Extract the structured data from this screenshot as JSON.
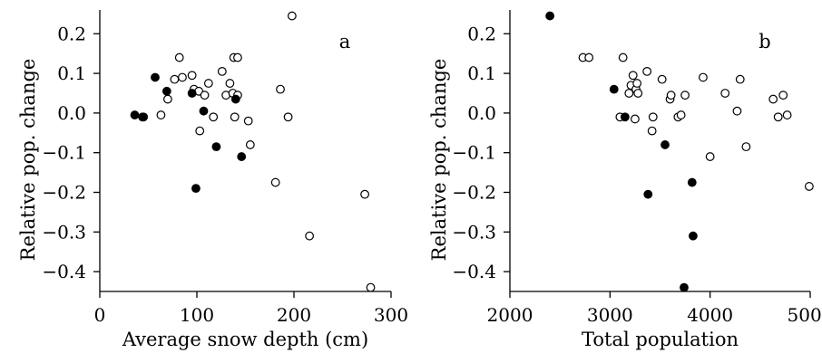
{
  "chart_data": [
    {
      "type": "scatter",
      "panel_label": "a",
      "xlabel": "Average snow depth (cm)",
      "ylabel": "Relative pop. change",
      "xlim": [
        0,
        300
      ],
      "ylim": [
        -0.45,
        0.26
      ],
      "x_ticks": [
        0,
        100,
        200,
        300
      ],
      "y_ticks": [
        -0.4,
        -0.3,
        -0.2,
        -0.1,
        0.0,
        0.1,
        0.2
      ],
      "y_tick_labels": [
        "−0.4",
        "−0.3",
        "−0.2",
        "−0.1",
        "0.0",
        "0.1",
        "0.2"
      ],
      "grid": false,
      "series": [
        {
          "marker": "open",
          "points": [
            [
              45,
              -0.01
            ],
            [
              63,
              -0.005
            ],
            [
              70,
              0.035
            ],
            [
              77,
              0.085
            ],
            [
              82,
              0.14
            ],
            [
              85,
              0.09
            ],
            [
              95,
              0.095
            ],
            [
              97,
              0.06
            ],
            [
              102,
              0.055
            ],
            [
              103,
              -0.045
            ],
            [
              108,
              0.045
            ],
            [
              112,
              0.075
            ],
            [
              117,
              -0.01
            ],
            [
              126,
              0.105
            ],
            [
              130,
              0.045
            ],
            [
              134,
              0.075
            ],
            [
              137,
              0.05
            ],
            [
              138,
              0.14
            ],
            [
              142,
              0.14
            ],
            [
              142,
              0.045
            ],
            [
              139,
              -0.01
            ],
            [
              153,
              -0.02
            ],
            [
              155,
              -0.08
            ],
            [
              181,
              -0.175
            ],
            [
              186,
              0.06
            ],
            [
              194,
              -0.01
            ],
            [
              198,
              0.245
            ],
            [
              216,
              -0.31
            ],
            [
              273,
              -0.205
            ],
            [
              279,
              -0.44
            ]
          ]
        },
        {
          "marker": "filled",
          "points": [
            [
              36,
              -0.005
            ],
            [
              44,
              -0.01
            ],
            [
              57,
              0.09
            ],
            [
              69,
              0.055
            ],
            [
              95,
              0.05
            ],
            [
              99,
              -0.19
            ],
            [
              107,
              0.005
            ],
            [
              120,
              -0.085
            ],
            [
              140,
              0.035
            ],
            [
              146,
              -0.11
            ]
          ]
        }
      ]
    },
    {
      "type": "scatter",
      "panel_label": "b",
      "xlabel": "Total population",
      "ylabel": "Relative pop. change",
      "xlim": [
        2000,
        5000
      ],
      "ylim": [
        -0.45,
        0.26
      ],
      "x_ticks": [
        2000,
        3000,
        4000,
        5000
      ],
      "y_ticks": [
        -0.4,
        -0.3,
        -0.2,
        -0.1,
        0.0,
        0.1,
        0.2
      ],
      "y_tick_labels": [
        "−0.4",
        "−0.3",
        "−0.2",
        "−0.1",
        "0.0",
        "0.1",
        "0.2"
      ],
      "grid": false,
      "series": [
        {
          "marker": "open",
          "points": [
            [
              2730,
              0.14
            ],
            [
              2790,
              0.14
            ],
            [
              3100,
              -0.01
            ],
            [
              3130,
              0.14
            ],
            [
              3190,
              0.05
            ],
            [
              3210,
              0.07
            ],
            [
              3230,
              0.095
            ],
            [
              3260,
              0.06
            ],
            [
              3270,
              0.075
            ],
            [
              3280,
              0.05
            ],
            [
              3250,
              -0.015
            ],
            [
              3370,
              0.105
            ],
            [
              3420,
              -0.045
            ],
            [
              3430,
              -0.01
            ],
            [
              3520,
              0.085
            ],
            [
              3600,
              0.035
            ],
            [
              3610,
              0.045
            ],
            [
              3680,
              -0.01
            ],
            [
              3710,
              -0.005
            ],
            [
              3750,
              0.045
            ],
            [
              3930,
              0.09
            ],
            [
              4000,
              -0.11
            ],
            [
              4150,
              0.05
            ],
            [
              4270,
              0.005
            ],
            [
              4300,
              0.085
            ],
            [
              4360,
              -0.085
            ],
            [
              4630,
              0.035
            ],
            [
              4680,
              -0.01
            ],
            [
              4730,
              0.045
            ],
            [
              4770,
              -0.005
            ],
            [
              4990,
              -0.185
            ]
          ]
        },
        {
          "marker": "filled",
          "points": [
            [
              2400,
              0.245
            ],
            [
              3040,
              0.06
            ],
            [
              3150,
              -0.01
            ],
            [
              3380,
              -0.205
            ],
            [
              3550,
              -0.08
            ],
            [
              3740,
              -0.44
            ],
            [
              3820,
              -0.175
            ],
            [
              3830,
              -0.31
            ]
          ]
        }
      ]
    }
  ]
}
